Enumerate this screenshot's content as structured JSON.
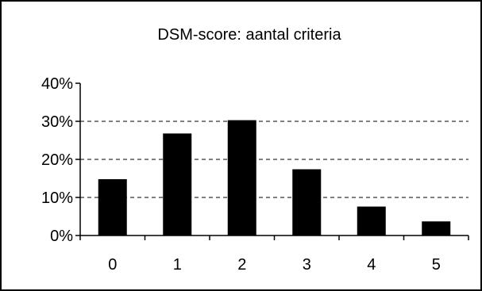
{
  "chart_data": {
    "type": "bar",
    "title": "DSM-score: aantal criteria",
    "categories": [
      "0",
      "1",
      "2",
      "3",
      "4",
      "5"
    ],
    "values": [
      14.8,
      26.8,
      30.3,
      17.4,
      7.6,
      3.7
    ],
    "ylim": [
      0,
      40
    ],
    "yticks": [
      "0%",
      "10%",
      "20%",
      "30%",
      "40%"
    ],
    "gridlines": "dashed horizontal",
    "legend": "none",
    "bar_color": "#000000"
  }
}
